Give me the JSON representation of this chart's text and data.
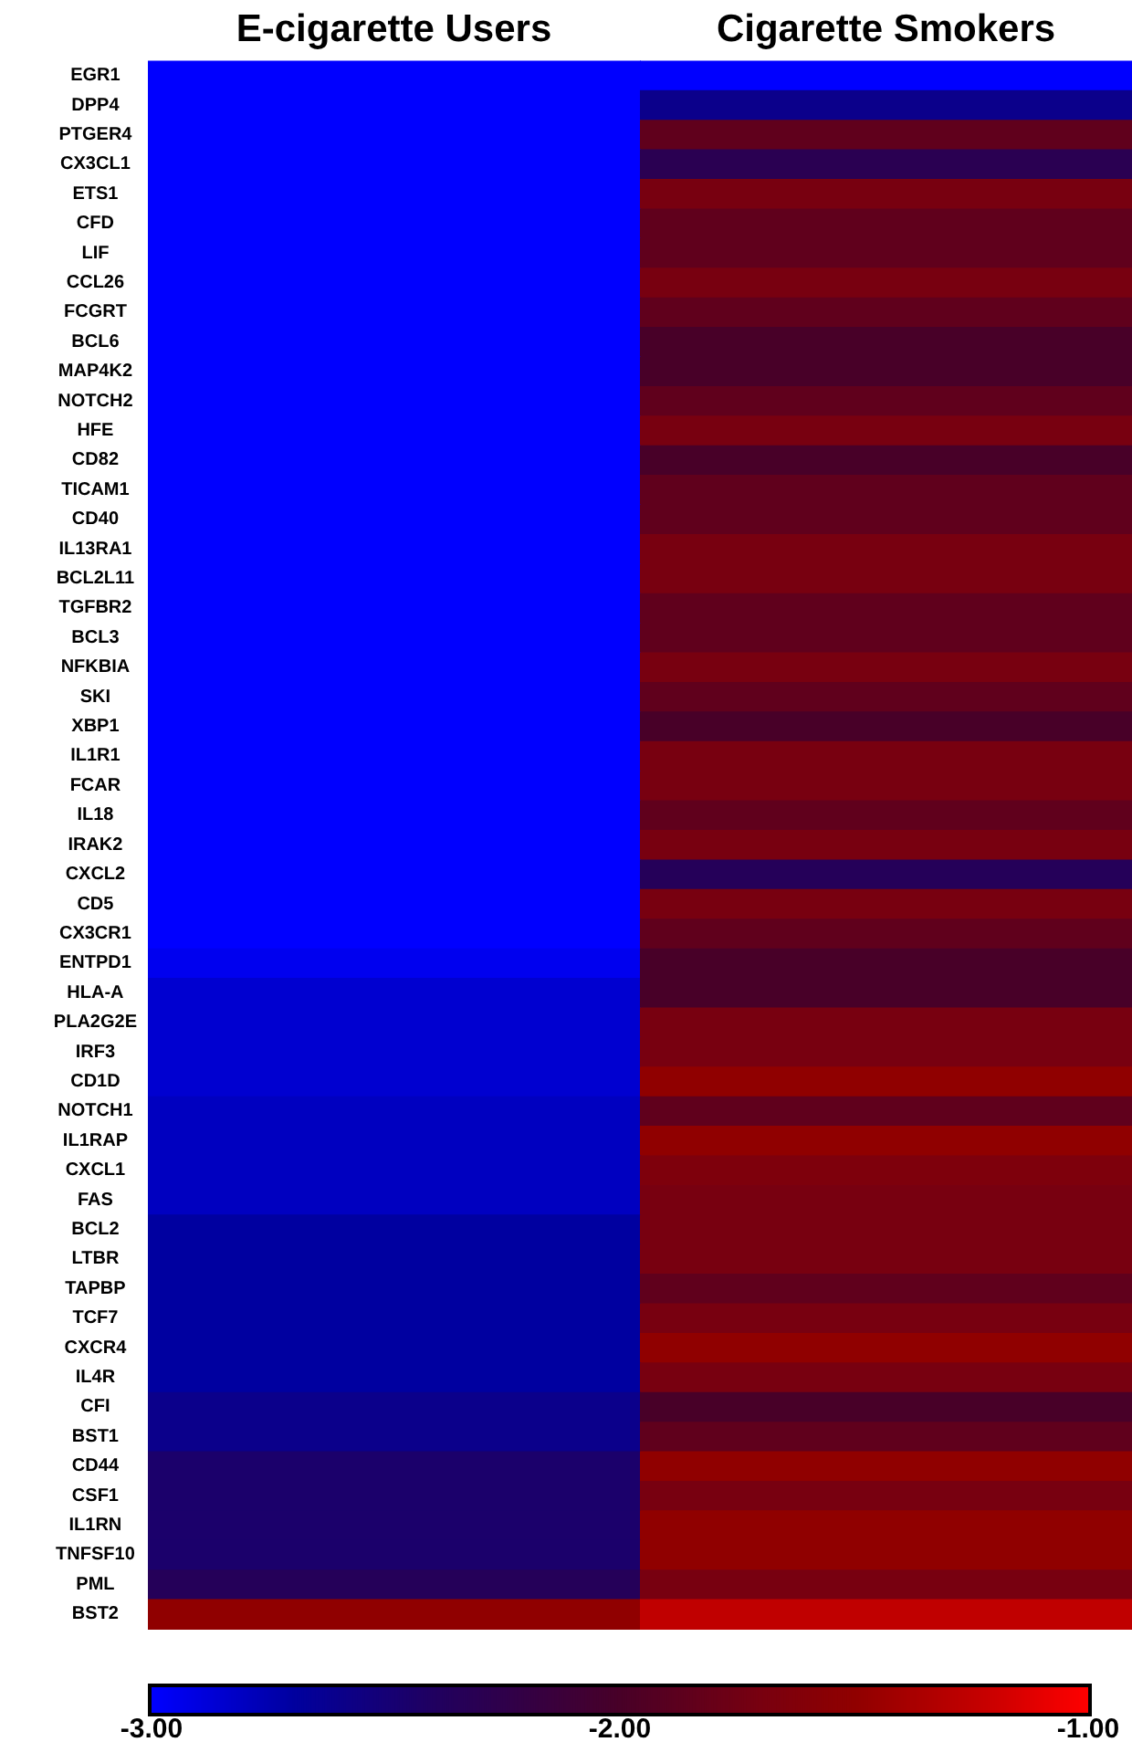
{
  "chart_data": {
    "type": "heatmap",
    "categories": [
      "E-cigarette Users",
      "Cigarette Smokers"
    ],
    "y_categories": [
      "EGR1",
      "DPP4",
      "PTGER4",
      "CX3CL1",
      "ETS1",
      "CFD",
      "LIF",
      "CCL26",
      "FCGRT",
      "BCL6",
      "MAP4K2",
      "NOTCH2",
      "HFE",
      "CD82",
      "TICAM1",
      "CD40",
      "IL13RA1",
      "BCL2L11",
      "TGFBR2",
      "BCL3",
      "NFKBIA",
      "SKI",
      "XBP1",
      "IL1R1",
      "FCAR",
      "IL18",
      "IRAK2",
      "CXCL2",
      "CD5",
      "CX3CR1",
      "ENTPD1",
      "HLA-A",
      "PLA2G2E",
      "IRF3",
      "CD1D",
      "NOTCH1",
      "IL1RAP",
      "CXCL1",
      "FAS",
      "BCL2",
      "LTBR",
      "TAPBP",
      "TCF7",
      "CXCR4",
      "IL4R",
      "CFI",
      "BST1",
      "CD44",
      "CSF1",
      "IL1RN",
      "TNFSF10",
      "PML",
      "BST2"
    ],
    "cells": [
      [
        -3.0,
        -3.0
      ],
      [
        -3.0,
        -2.6
      ],
      [
        -3.0,
        -1.85
      ],
      [
        -3.0,
        -2.3
      ],
      [
        -3.0,
        -1.7
      ],
      [
        -3.0,
        -1.85
      ],
      [
        -3.0,
        -1.85
      ],
      [
        -3.0,
        -1.7
      ],
      [
        -3.0,
        -1.85
      ],
      [
        -3.0,
        -2.0
      ],
      [
        -3.0,
        -2.0
      ],
      [
        -3.0,
        -1.85
      ],
      [
        -3.0,
        -1.7
      ],
      [
        -3.0,
        -2.0
      ],
      [
        -3.0,
        -1.85
      ],
      [
        -3.0,
        -1.85
      ],
      [
        -3.0,
        -1.7
      ],
      [
        -3.0,
        -1.7
      ],
      [
        -3.0,
        -1.85
      ],
      [
        -3.0,
        -1.85
      ],
      [
        -3.0,
        -1.7
      ],
      [
        -3.0,
        -1.85
      ],
      [
        -3.0,
        -2.0
      ],
      [
        -3.0,
        -1.7
      ],
      [
        -3.0,
        -1.7
      ],
      [
        -3.0,
        -1.85
      ],
      [
        -3.0,
        -1.7
      ],
      [
        -3.0,
        -2.35
      ],
      [
        -3.0,
        -1.7
      ],
      [
        -3.0,
        -1.85
      ],
      [
        -2.95,
        -2.0
      ],
      [
        -2.85,
        -2.0
      ],
      [
        -2.85,
        -1.7
      ],
      [
        -2.85,
        -1.7
      ],
      [
        -2.85,
        -1.5
      ],
      [
        -2.8,
        -1.85
      ],
      [
        -2.8,
        -1.5
      ],
      [
        -2.8,
        -1.65
      ],
      [
        -2.8,
        -1.7
      ],
      [
        -2.7,
        -1.7
      ],
      [
        -2.7,
        -1.7
      ],
      [
        -2.7,
        -1.85
      ],
      [
        -2.7,
        -1.7
      ],
      [
        -2.7,
        -1.5
      ],
      [
        -2.7,
        -1.7
      ],
      [
        -2.6,
        -2.0
      ],
      [
        -2.6,
        -1.85
      ],
      [
        -2.45,
        -1.5
      ],
      [
        -2.45,
        -1.7
      ],
      [
        -2.45,
        -1.5
      ],
      [
        -2.45,
        -1.5
      ],
      [
        -2.35,
        -1.7
      ],
      [
        -1.5,
        -1.25
      ]
    ],
    "clim": [
      -3,
      -1
    ],
    "cticks": [
      {
        "value": -3,
        "label": "-3.00"
      },
      {
        "value": -2,
        "label": "-2.00"
      },
      {
        "value": -1,
        "label": "-1.00"
      }
    ]
  }
}
